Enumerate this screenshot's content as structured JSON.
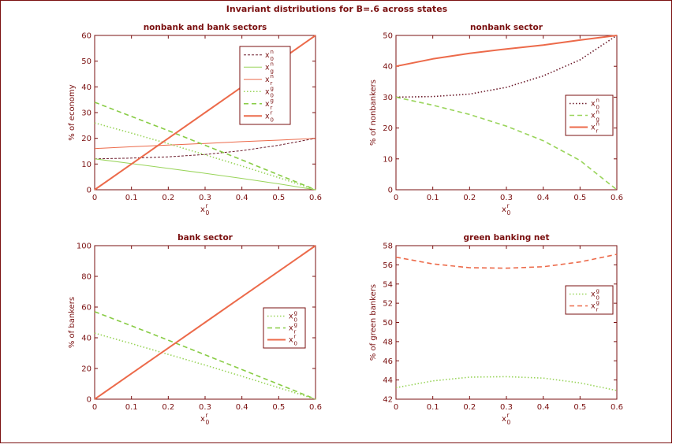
{
  "figure": {
    "suptitle": "Invariant distributions for B=.6 across states"
  },
  "colors": {
    "axis": "#7a1010",
    "x0n": "#6b1a2a",
    "x0g": "#99d45a",
    "xrg": "#88cc44",
    "xrn": "#ec6a4a",
    "xr0": "#ec6a4a",
    "border": "#7a1010"
  },
  "chart_data": [
    {
      "type": "line",
      "title": "nonbank and bank sectors",
      "xlabel": {
        "main": "x",
        "sup": "r",
        "sub": "0"
      },
      "ylabel": "% of economy",
      "xlim": [
        0,
        0.6
      ],
      "ylim": [
        0,
        60
      ],
      "xticks": [
        "0",
        "0.1",
        "0.2",
        "0.3",
        "0.4",
        "0.5",
        "0.6"
      ],
      "yticks": [
        "0",
        "10",
        "20",
        "30",
        "40",
        "50",
        "60"
      ],
      "legend_position": "top-right",
      "x": [
        0,
        0.1,
        0.2,
        0.3,
        0.4,
        0.5,
        0.6
      ],
      "series": [
        {
          "legend": {
            "main": "x",
            "sup": "n",
            "sub": "0"
          },
          "style": "dashed-thin",
          "color": "#6b1a2a",
          "values": [
            12,
            12.3,
            12.8,
            13.7,
            15.2,
            17.3,
            20
          ]
        },
        {
          "legend": {
            "main": "x",
            "sup": "n",
            "sub": "g"
          },
          "style": "solid-thin",
          "color": "#99d45a",
          "values": [
            12,
            10.2,
            8.3,
            6.4,
            4.4,
            2.3,
            0
          ]
        },
        {
          "legend": {
            "main": "x",
            "sup": "n",
            "sub": "r"
          },
          "style": "solid-thin",
          "color": "#ec6a4a",
          "values": [
            16,
            16.7,
            17.4,
            18.0,
            18.7,
            19.3,
            20
          ]
        },
        {
          "legend": {
            "main": "x",
            "sup": "g",
            "sub": "0"
          },
          "style": "dotted",
          "color": "#99d45a",
          "values": [
            26,
            22.0,
            17.9,
            13.6,
            9.2,
            4.7,
            0
          ]
        },
        {
          "legend": {
            "main": "x",
            "sup": "g",
            "sub": "r"
          },
          "style": "dashed",
          "color": "#88cc44",
          "values": [
            34,
            28.5,
            23.0,
            17.3,
            11.6,
            5.8,
            0
          ]
        },
        {
          "legend": {
            "main": "x",
            "sup": "r",
            "sub": "0"
          },
          "style": "solid",
          "color": "#ec6a4a",
          "values": [
            0,
            10,
            20,
            30,
            40,
            50,
            60
          ]
        }
      ]
    },
    {
      "type": "line",
      "title": "nonbank sector",
      "xlabel": {
        "main": "x",
        "sup": "r",
        "sub": "0"
      },
      "ylabel": "% of nonbankers",
      "xlim": [
        0,
        0.6
      ],
      "ylim": [
        0,
        50
      ],
      "xticks": [
        "0",
        "0.1",
        "0.2",
        "0.3",
        "0.4",
        "0.5",
        "0.6"
      ],
      "yticks": [
        "0",
        "10",
        "20",
        "30",
        "40",
        "50"
      ],
      "legend_position": "right",
      "x": [
        0,
        0.1,
        0.2,
        0.3,
        0.4,
        0.5,
        0.6
      ],
      "series": [
        {
          "legend": {
            "main": "x",
            "sup": "n",
            "sub": "0"
          },
          "style": "dotted",
          "color": "#6b1a2a",
          "values": [
            30,
            30.2,
            31.0,
            33.2,
            36.9,
            42.1,
            50
          ]
        },
        {
          "legend": {
            "main": "x",
            "sup": "n",
            "sub": "g"
          },
          "style": "dashed",
          "color": "#99d45a",
          "values": [
            30,
            27.4,
            24.4,
            20.6,
            15.9,
            9.5,
            0
          ]
        },
        {
          "legend": {
            "main": "x",
            "sup": "n",
            "sub": "r"
          },
          "style": "solid",
          "color": "#ec6a4a",
          "values": [
            40,
            42.4,
            44.2,
            45.6,
            46.9,
            48.5,
            50
          ]
        }
      ]
    },
    {
      "type": "line",
      "title": "bank sector",
      "xlabel": {
        "main": "x",
        "sup": "r",
        "sub": "0"
      },
      "ylabel": "% of bankers",
      "xlim": [
        0,
        0.6
      ],
      "ylim": [
        0,
        100
      ],
      "xticks": [
        "0",
        "0.1",
        "0.2",
        "0.3",
        "0.4",
        "0.5",
        "0.6"
      ],
      "yticks": [
        "0",
        "20",
        "40",
        "60",
        "80",
        "100"
      ],
      "legend_position": "right",
      "x": [
        0,
        0.1,
        0.2,
        0.3,
        0.4,
        0.5,
        0.6
      ],
      "series": [
        {
          "legend": {
            "main": "x",
            "sup": "g",
            "sub": "0"
          },
          "style": "dotted",
          "color": "#99d45a",
          "values": [
            43,
            36.2,
            29.2,
            22.2,
            14.9,
            7.5,
            0
          ]
        },
        {
          "legend": {
            "main": "x",
            "sup": "g",
            "sub": "r"
          },
          "style": "dashed",
          "color": "#88cc44",
          "values": [
            57,
            47.8,
            38.4,
            28.9,
            19.3,
            9.7,
            0
          ]
        },
        {
          "legend": {
            "main": "x",
            "sup": "r",
            "sub": "0"
          },
          "style": "solid",
          "color": "#ec6a4a",
          "values": [
            0,
            16.7,
            33.3,
            50,
            66.7,
            83.3,
            100
          ]
        }
      ]
    },
    {
      "type": "line",
      "title": "green banking net",
      "xlabel": {
        "main": "x",
        "sup": "r",
        "sub": "0"
      },
      "ylabel": "% of green bankers",
      "xlim": [
        0,
        0.6
      ],
      "ylim": [
        42,
        58
      ],
      "xticks": [
        "0",
        "0.1",
        "0.2",
        "0.3",
        "0.4",
        "0.5",
        "0.6"
      ],
      "yticks": [
        "42",
        "44",
        "46",
        "48",
        "50",
        "52",
        "54",
        "56",
        "58"
      ],
      "legend_position": "right",
      "x": [
        0,
        0.1,
        0.2,
        0.3,
        0.4,
        0.5,
        0.6
      ],
      "series": [
        {
          "legend": {
            "main": "x",
            "sup": "g",
            "sub": "0"
          },
          "style": "dotted",
          "color": "#99d45a",
          "values": [
            43.2,
            43.9,
            44.3,
            44.35,
            44.2,
            43.7,
            42.9
          ]
        },
        {
          "legend": {
            "main": "x",
            "sup": "g",
            "sub": "r"
          },
          "style": "dashed",
          "color": "#ec6a4a",
          "values": [
            56.8,
            56.1,
            55.7,
            55.65,
            55.8,
            56.3,
            57.1
          ]
        }
      ]
    }
  ]
}
